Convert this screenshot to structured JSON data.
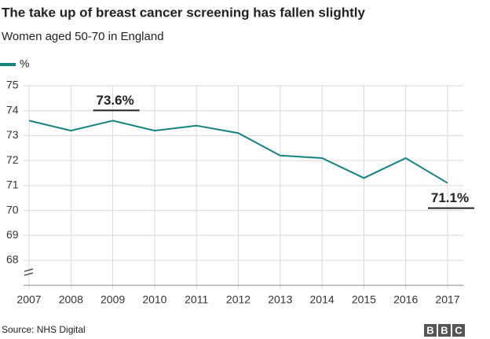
{
  "chart_data": {
    "type": "line",
    "title": "The take up of breast cancer screening has fallen slightly",
    "subtitle": "Women aged 50-70 in England",
    "x": [
      2007,
      2008,
      2009,
      2010,
      2011,
      2012,
      2013,
      2014,
      2015,
      2016,
      2017
    ],
    "series": [
      {
        "name": "%",
        "color": "#16837c",
        "values": [
          73.6,
          73.2,
          73.6,
          73.2,
          73.4,
          73.1,
          72.2,
          72.1,
          71.3,
          72.1,
          71.1
        ],
        "value_labels": [
          null,
          null,
          "73.6%",
          null,
          null,
          null,
          null,
          null,
          null,
          null,
          "71.1%"
        ]
      }
    ],
    "xlim": [
      2007,
      2017
    ],
    "xticks": [
      2007,
      2008,
      2009,
      2010,
      2011,
      2012,
      2013,
      2014,
      2015,
      2016,
      2017
    ],
    "ylim": [
      67,
      75
    ],
    "yticks": [
      68,
      69,
      70,
      71,
      72,
      73,
      74,
      75
    ],
    "grid": true,
    "legend": "top-left",
    "source": "Source: NHS Digital",
    "logo": [
      "B",
      "B",
      "C"
    ]
  }
}
